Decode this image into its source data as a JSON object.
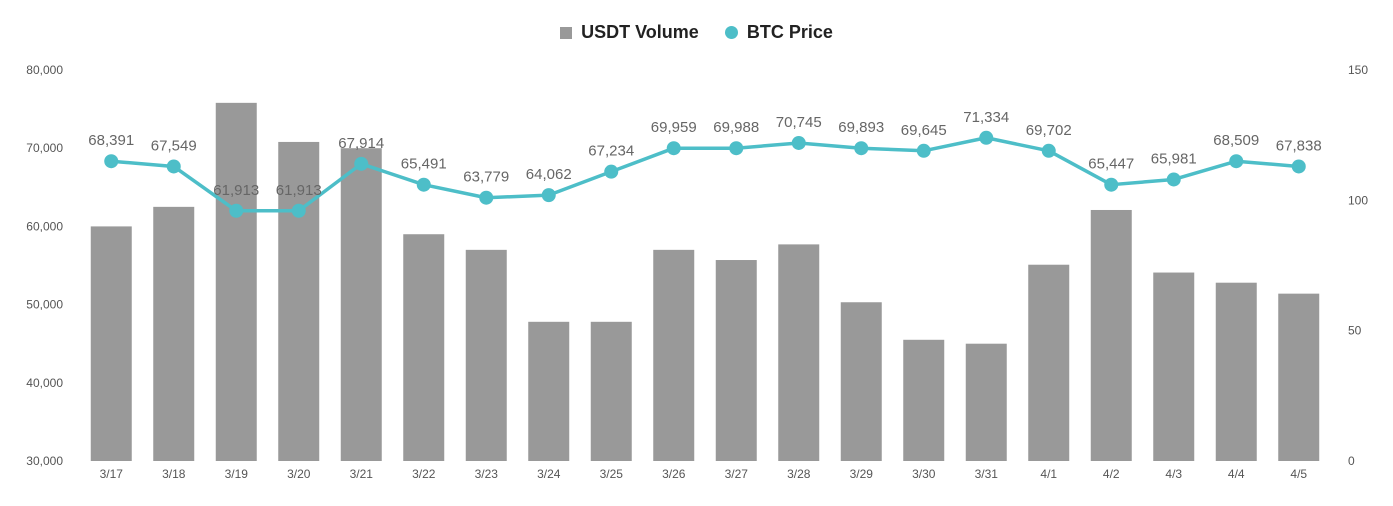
{
  "colors": {
    "bar": "#999999",
    "line": "#4dbec8",
    "label": "#666666",
    "tick": "#555555"
  },
  "chart_data": {
    "type": "bar",
    "legend_position": "top-center",
    "grid": false,
    "categories": [
      "3/17",
      "3/18",
      "3/19",
      "3/20",
      "3/21",
      "3/22",
      "3/23",
      "3/24",
      "3/25",
      "3/26",
      "3/27",
      "3/28",
      "3/29",
      "3/30",
      "3/31",
      "4/1",
      "4/2",
      "4/3",
      "4/4",
      "4/5"
    ],
    "y_left": {
      "min": 30000,
      "max": 80000,
      "ticks": [
        "30,000",
        "40,000",
        "50,000",
        "60,000",
        "70,000",
        "80,000"
      ],
      "tick_values": [
        30000,
        40000,
        50000,
        60000,
        70000,
        80000
      ]
    },
    "y_right": {
      "min": 0,
      "max": 150,
      "ticks": [
        "0",
        "50",
        "100",
        "150"
      ],
      "tick_values": [
        0,
        50,
        100,
        150
      ]
    },
    "series": [
      {
        "name": "USDT Volume",
        "type": "bar",
        "axis": "left",
        "values": [
          60000,
          62500,
          75800,
          70800,
          70000,
          59000,
          57000,
          47800,
          47800,
          57000,
          55700,
          57700,
          50300,
          45500,
          45000,
          55100,
          62100,
          54100,
          52800,
          51400
        ]
      },
      {
        "name": "BTC Price",
        "type": "line",
        "axis": "right",
        "values": [
          115,
          113,
          96,
          96,
          114,
          106,
          101,
          102,
          111,
          120,
          120,
          122,
          120,
          119,
          124,
          119,
          106,
          108,
          115,
          113
        ],
        "labels": [
          "68,391",
          "67,549",
          "61,913",
          "61,913",
          "67,914",
          "65,491",
          "63,779",
          "64,062",
          "67,234",
          "69,959",
          "69,988",
          "70,745",
          "69,893",
          "69,645",
          "71,334",
          "69,702",
          "65,447",
          "65,981",
          "68,509",
          "67,838"
        ]
      }
    ]
  }
}
